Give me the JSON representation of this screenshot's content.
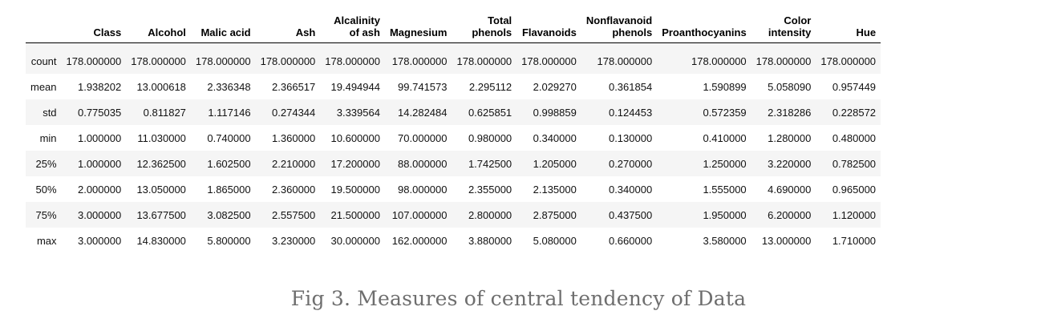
{
  "table": {
    "columns": [
      {
        "lines": [
          "Class"
        ]
      },
      {
        "lines": [
          "Alcohol"
        ]
      },
      {
        "lines": [
          "Malic acid"
        ]
      },
      {
        "lines": [
          "Ash"
        ]
      },
      {
        "lines": [
          "Alcalinity",
          "of ash"
        ]
      },
      {
        "lines": [
          "Magnesium"
        ]
      },
      {
        "lines": [
          "Total",
          "phenols"
        ]
      },
      {
        "lines": [
          "Flavanoids"
        ]
      },
      {
        "lines": [
          "Nonflavanoid",
          "phenols"
        ]
      },
      {
        "lines": [
          "Proanthocyanins"
        ]
      },
      {
        "lines": [
          "Color",
          "intensity"
        ]
      },
      {
        "lines": [
          "Hue"
        ]
      }
    ],
    "rows": [
      {
        "label": "count",
        "values": [
          "178.000000",
          "178.000000",
          "178.000000",
          "178.000000",
          "178.000000",
          "178.000000",
          "178.000000",
          "178.000000",
          "178.000000",
          "178.000000",
          "178.000000",
          "178.000000"
        ]
      },
      {
        "label": "mean",
        "values": [
          "1.938202",
          "13.000618",
          "2.336348",
          "2.366517",
          "19.494944",
          "99.741573",
          "2.295112",
          "2.029270",
          "0.361854",
          "1.590899",
          "5.058090",
          "0.957449"
        ]
      },
      {
        "label": "std",
        "values": [
          "0.775035",
          "0.811827",
          "1.117146",
          "0.274344",
          "3.339564",
          "14.282484",
          "0.625851",
          "0.998859",
          "0.124453",
          "0.572359",
          "2.318286",
          "0.228572"
        ]
      },
      {
        "label": "min",
        "values": [
          "1.000000",
          "11.030000",
          "0.740000",
          "1.360000",
          "10.600000",
          "70.000000",
          "0.980000",
          "0.340000",
          "0.130000",
          "0.410000",
          "1.280000",
          "0.480000"
        ]
      },
      {
        "label": "25%",
        "values": [
          "1.000000",
          "12.362500",
          "1.602500",
          "2.210000",
          "17.200000",
          "88.000000",
          "1.742500",
          "1.205000",
          "0.270000",
          "1.250000",
          "3.220000",
          "0.782500"
        ]
      },
      {
        "label": "50%",
        "values": [
          "2.000000",
          "13.050000",
          "1.865000",
          "2.360000",
          "19.500000",
          "98.000000",
          "2.355000",
          "2.135000",
          "0.340000",
          "1.555000",
          "4.690000",
          "0.965000"
        ]
      },
      {
        "label": "75%",
        "values": [
          "3.000000",
          "13.677500",
          "3.082500",
          "2.557500",
          "21.500000",
          "107.000000",
          "2.800000",
          "2.875000",
          "0.437500",
          "1.950000",
          "6.200000",
          "1.120000"
        ]
      },
      {
        "label": "max",
        "values": [
          "3.000000",
          "14.830000",
          "5.800000",
          "3.230000",
          "30.000000",
          "162.000000",
          "3.880000",
          "5.080000",
          "0.660000",
          "3.580000",
          "13.000000",
          "1.710000"
        ]
      }
    ]
  },
  "caption": "Fig 3. Measures of central tendency of Data"
}
